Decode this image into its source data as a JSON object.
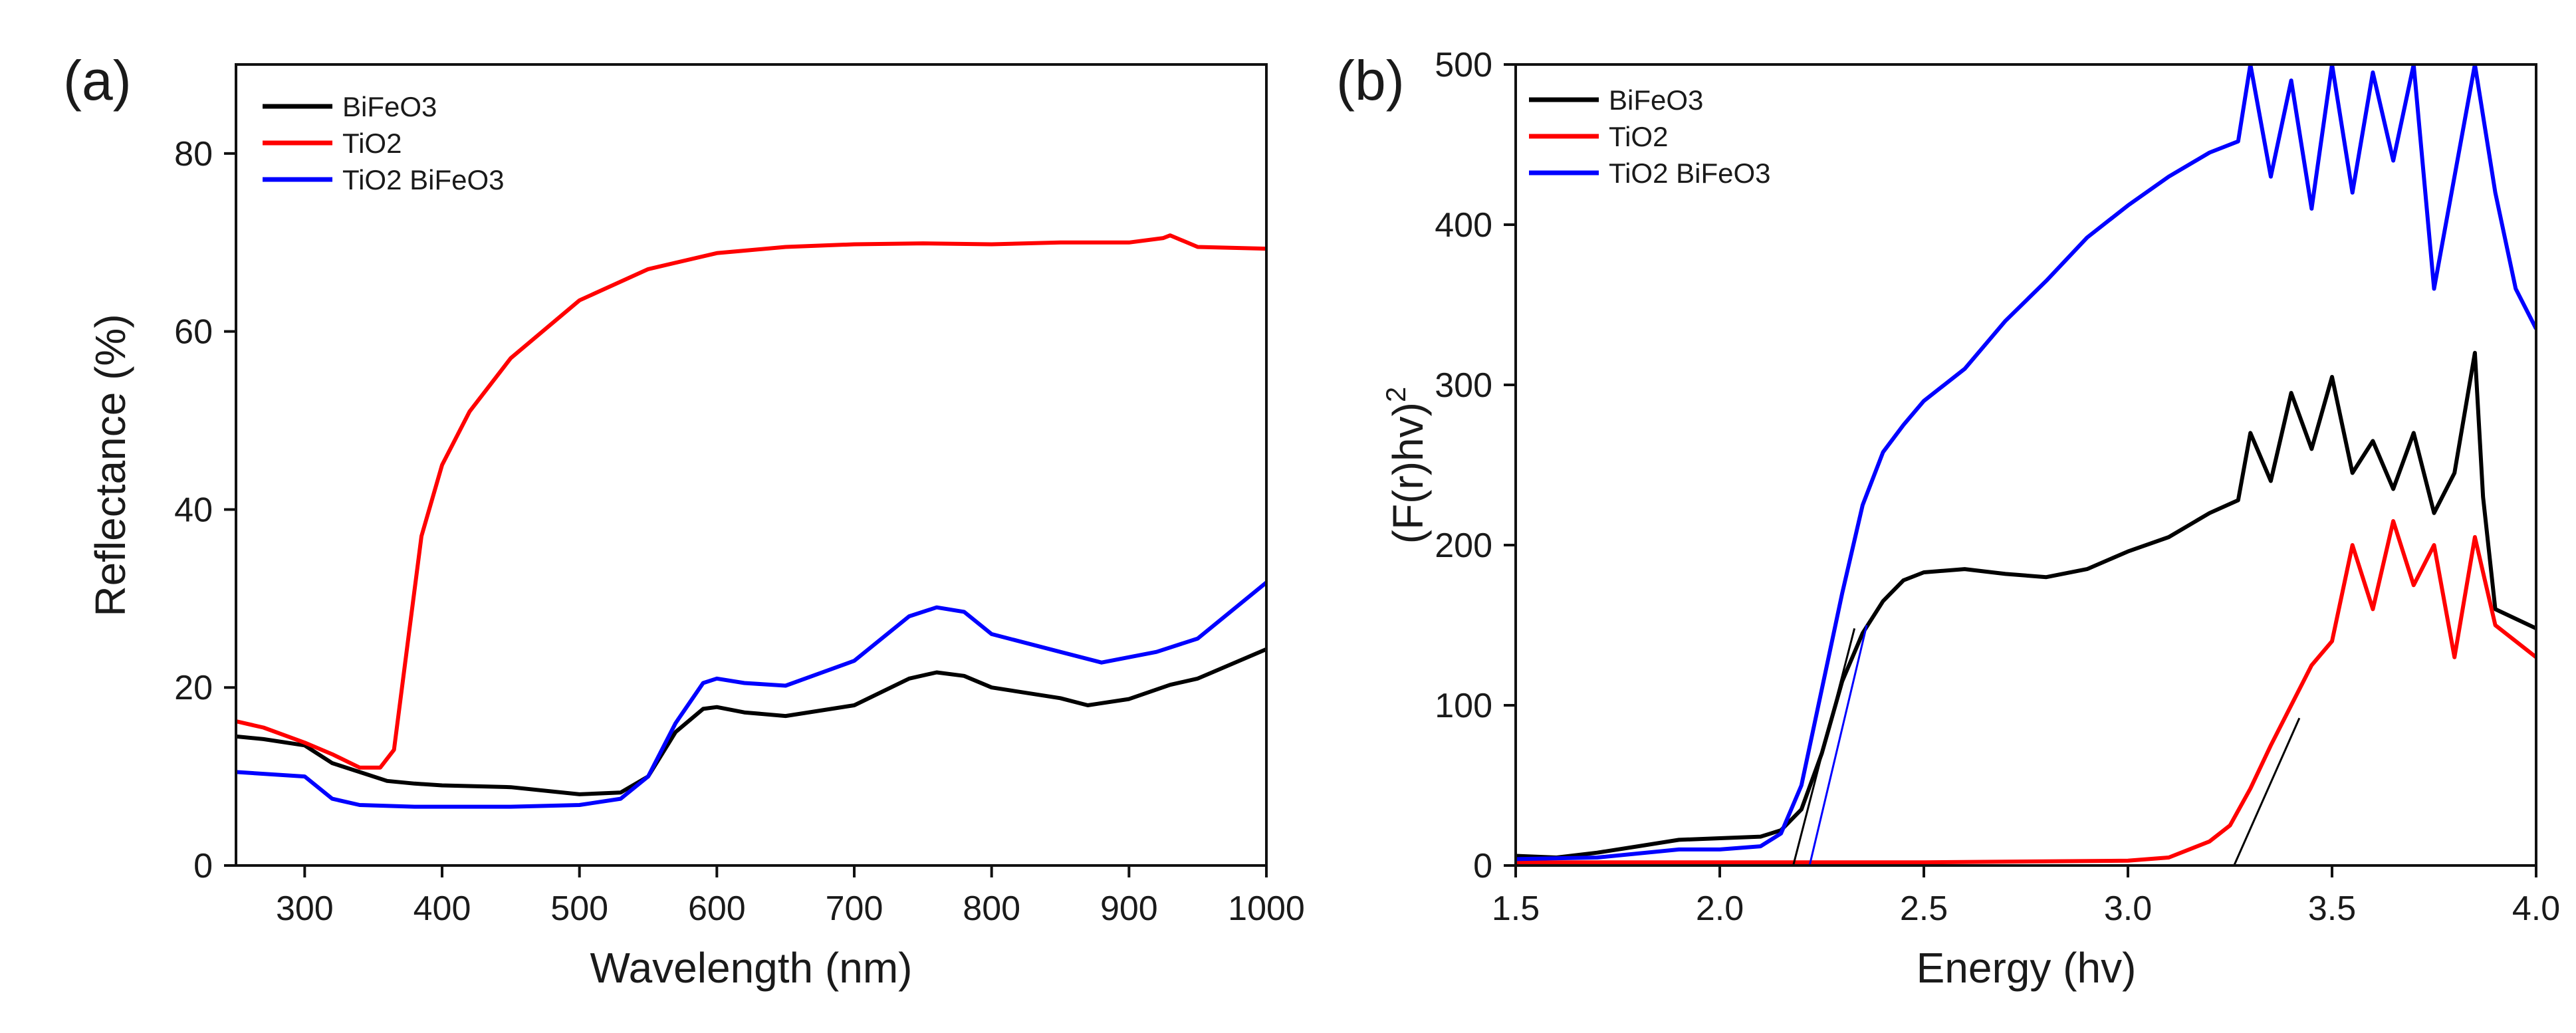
{
  "chart_data": [
    {
      "panel_label": "(a)",
      "type": "line",
      "title": "",
      "xlabel": "Wavelength (nm)",
      "ylabel": "Reflectance (%)",
      "xlim": [
        250,
        1000
      ],
      "ylim": [
        0,
        90
      ],
      "xticks": [
        300,
        400,
        500,
        600,
        700,
        800,
        900,
        1000
      ],
      "yticks": [
        0,
        20,
        40,
        60,
        80
      ],
      "legend": {
        "position": "top-left",
        "entries": [
          "BiFeO3",
          "TiO2",
          "TiO2 BiFeO3"
        ]
      },
      "series": [
        {
          "name": "BiFeO3",
          "color": "#000000",
          "x": [
            250,
            270,
            300,
            320,
            340,
            360,
            380,
            400,
            450,
            500,
            530,
            550,
            570,
            590,
            600,
            620,
            650,
            700,
            740,
            760,
            780,
            800,
            850,
            870,
            900,
            930,
            950,
            1000
          ],
          "y": [
            14.5,
            14.2,
            13.5,
            11.5,
            10.5,
            9.5,
            9.2,
            9.0,
            8.8,
            8.0,
            8.2,
            10.0,
            15.0,
            17.6,
            17.8,
            17.2,
            16.8,
            18.0,
            21.0,
            21.7,
            21.3,
            20.0,
            18.8,
            18.0,
            18.7,
            20.3,
            21.0,
            24.3
          ]
        },
        {
          "name": "TiO2",
          "color": "#ff0000",
          "x": [
            250,
            270,
            300,
            320,
            340,
            355,
            365,
            375,
            385,
            400,
            420,
            450,
            500,
            550,
            600,
            650,
            700,
            750,
            800,
            850,
            900,
            925,
            930,
            950,
            1000
          ],
          "y": [
            16.2,
            15.5,
            13.8,
            12.5,
            11.0,
            11.0,
            13.0,
            25.0,
            37.0,
            45.0,
            51.0,
            57.0,
            63.5,
            67.0,
            68.8,
            69.5,
            69.8,
            69.9,
            69.8,
            70.0,
            70.0,
            70.5,
            70.8,
            69.5,
            69.3
          ]
        },
        {
          "name": "TiO2 BiFeO3",
          "color": "#0000ff",
          "x": [
            250,
            300,
            320,
            340,
            380,
            450,
            500,
            530,
            550,
            570,
            590,
            600,
            620,
            650,
            700,
            740,
            760,
            780,
            800,
            850,
            880,
            920,
            950,
            1000
          ],
          "y": [
            10.5,
            10.0,
            7.5,
            6.8,
            6.6,
            6.6,
            6.8,
            7.5,
            10.0,
            16.0,
            20.5,
            21.0,
            20.5,
            20.2,
            23.0,
            28.0,
            29.0,
            28.5,
            26.0,
            24.0,
            22.8,
            24.0,
            25.5,
            31.8
          ]
        }
      ]
    },
    {
      "panel_label": "(b)",
      "type": "line",
      "title": "",
      "xlabel": "Energy (hv)",
      "ylabel": "(F(r)hv)",
      "ylabel_sup": "2",
      "xlim": [
        1.5,
        4.0
      ],
      "ylim": [
        0,
        500
      ],
      "xticks": [
        1.5,
        2.0,
        2.5,
        3.0,
        3.5,
        4.0
      ],
      "yticks": [
        0,
        100,
        200,
        300,
        400,
        500
      ],
      "legend": {
        "position": "top-left",
        "entries": [
          "BiFeO3",
          "TiO2",
          "TiO2 BiFeO3"
        ]
      },
      "series": [
        {
          "name": "BiFeO3",
          "color": "#000000",
          "x": [
            1.5,
            1.6,
            1.7,
            1.8,
            1.9,
            2.0,
            2.1,
            2.15,
            2.2,
            2.25,
            2.3,
            2.35,
            2.4,
            2.45,
            2.5,
            2.6,
            2.7,
            2.8,
            2.9,
            3.0,
            3.1,
            3.2,
            3.27,
            3.3,
            3.35,
            3.4,
            3.45,
            3.5,
            3.55,
            3.6,
            3.65,
            3.7,
            3.75,
            3.8,
            3.85,
            3.87,
            3.9,
            4.0
          ],
          "y": [
            6,
            5,
            8,
            12,
            16,
            17,
            18,
            22,
            35,
            70,
            115,
            145,
            165,
            178,
            183,
            185,
            182,
            180,
            185,
            196,
            205,
            220,
            228,
            270,
            240,
            295,
            260,
            305,
            245,
            265,
            235,
            270,
            220,
            245,
            320,
            230,
            160,
            148
          ]
        },
        {
          "name": "TiO2",
          "color": "#ff0000",
          "x": [
            1.5,
            2.0,
            2.5,
            3.0,
            3.1,
            3.2,
            3.25,
            3.3,
            3.35,
            3.4,
            3.45,
            3.5,
            3.55,
            3.6,
            3.65,
            3.7,
            3.75,
            3.8,
            3.85,
            3.9,
            4.0
          ],
          "y": [
            2,
            2,
            2,
            3,
            5,
            15,
            25,
            48,
            75,
            100,
            125,
            140,
            200,
            160,
            215,
            175,
            200,
            130,
            205,
            150,
            130
          ]
        },
        {
          "name": "TiO2 BiFeO3",
          "color": "#0000ff",
          "x": [
            1.5,
            1.7,
            1.9,
            2.0,
            2.1,
            2.15,
            2.2,
            2.25,
            2.3,
            2.35,
            2.4,
            2.45,
            2.5,
            2.6,
            2.7,
            2.8,
            2.9,
            3.0,
            3.1,
            3.2,
            3.27,
            3.3,
            3.35,
            3.4,
            3.45,
            3.5,
            3.55,
            3.6,
            3.65,
            3.7,
            3.75,
            3.8,
            3.85,
            3.9,
            3.95,
            4.0
          ],
          "y": [
            4,
            5,
            10,
            10,
            12,
            20,
            50,
            110,
            170,
            225,
            258,
            275,
            290,
            310,
            340,
            365,
            392,
            412,
            430,
            445,
            452,
            500,
            430,
            490,
            410,
            500,
            420,
            495,
            440,
            500,
            360,
            430,
            500,
            420,
            360,
            335
          ]
        }
      ],
      "fit_lines": [
        {
          "color": "#000000",
          "x": [
            2.18,
            2.33
          ],
          "y": [
            0,
            148
          ]
        },
        {
          "color": "#0000ff",
          "x": [
            2.22,
            2.36
          ],
          "y": [
            0,
            150
          ]
        },
        {
          "color": "#000000",
          "x": [
            3.26,
            3.42
          ],
          "y": [
            0,
            92
          ]
        }
      ]
    }
  ]
}
